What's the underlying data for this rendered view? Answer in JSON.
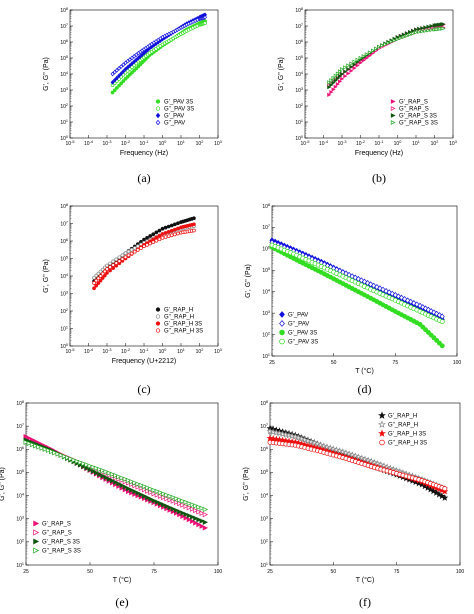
{
  "chart_data": [
    {
      "panel": "(a)",
      "type": "scatter",
      "xscale": "log",
      "yscale": "log",
      "xlim": [
        1e-05,
        1000
      ],
      "ylim": [
        1,
        100000000.0
      ],
      "xlabel": "Frequency (Hz)",
      "ylabel": "G', G\" (Pa)",
      "legend_position": "bottom-right",
      "series": [
        {
          "name": "G'_PAV 3S",
          "marker": "circle",
          "filled": true,
          "color": "#33dd22",
          "x": [
            0.002,
            0.01,
            0.05,
            0.2,
            1,
            5,
            20,
            100,
            200
          ],
          "y": [
            700,
            5000,
            30000,
            150000,
            600000,
            2000000,
            6000000,
            15000000,
            20000000
          ]
        },
        {
          "name": "G\"_PAV 3S",
          "marker": "circle",
          "filled": false,
          "color": "#33dd22",
          "x": [
            0.002,
            0.01,
            0.05,
            0.2,
            1,
            5,
            20,
            100,
            200
          ],
          "y": [
            2000,
            12000,
            60000,
            200000,
            700000,
            2000000,
            5000000,
            12000000,
            15000000
          ]
        },
        {
          "name": "G'_PAV",
          "marker": "diamond",
          "filled": true,
          "color": "#1111dd",
          "x": [
            0.002,
            0.01,
            0.05,
            0.2,
            1,
            5,
            20,
            100,
            200
          ],
          "y": [
            3000,
            20000,
            100000,
            400000,
            1500000,
            5000000,
            14000000,
            35000000,
            50000000
          ]
        },
        {
          "name": "G\"_PAV",
          "marker": "diamond",
          "filled": false,
          "color": "#1111dd",
          "x": [
            0.002,
            0.01,
            0.05,
            0.2,
            1,
            5,
            20,
            100,
            200
          ],
          "y": [
            10000,
            50000,
            200000,
            600000,
            2000000,
            5000000,
            12000000,
            28000000,
            35000000
          ]
        }
      ]
    },
    {
      "panel": "(b)",
      "type": "scatter",
      "xscale": "log",
      "yscale": "log",
      "xlim": [
        1e-05,
        1000
      ],
      "ylim": [
        1,
        100000000.0
      ],
      "xlabel": "Frequency (Hz)",
      "ylabel": "G', G\" (Pa)",
      "legend_position": "bottom-right",
      "series": [
        {
          "name": "G'_RAP_S",
          "marker": "triangle-right",
          "filled": true,
          "color": "#ee1177",
          "x": [
            0.0002,
            0.001,
            0.01,
            0.1,
            1,
            10,
            100,
            300
          ],
          "y": [
            500,
            5000,
            50000,
            400000,
            2000000,
            6000000,
            10000000,
            12000000
          ]
        },
        {
          "name": "G\"_RAP_S",
          "marker": "triangle-right",
          "filled": false,
          "color": "#ee1177",
          "x": [
            0.0002,
            0.001,
            0.01,
            0.1,
            1,
            10,
            100,
            300
          ],
          "y": [
            2000,
            10000,
            70000,
            400000,
            1500000,
            4000000,
            7000000,
            8000000
          ]
        },
        {
          "name": "G'_RAP_S 3S",
          "marker": "triangle-right",
          "filled": true,
          "color": "#115511",
          "x": [
            0.0002,
            0.001,
            0.01,
            0.1,
            1,
            10,
            100,
            300
          ],
          "y": [
            1500,
            10000,
            80000,
            500000,
            2000000,
            6000000,
            11000000,
            13000000
          ]
        },
        {
          "name": "G\"_RAP_S 3S",
          "marker": "triangle-right",
          "filled": false,
          "color": "#22aa22",
          "x": [
            0.0002,
            0.001,
            0.01,
            0.1,
            1,
            10,
            100,
            300
          ],
          "y": [
            3000,
            20000,
            100000,
            500000,
            1500000,
            4000000,
            6000000,
            7000000
          ]
        }
      ]
    },
    {
      "panel": "(c)",
      "type": "scatter",
      "xscale": "log",
      "yscale": "log",
      "xlim": [
        1e-05,
        1000
      ],
      "ylim": [
        1,
        100000000.0
      ],
      "xlabel": "Frequency (U+2212)",
      "ylabel": "G', G\" (Pa)",
      "legend_position": "bottom-right",
      "series": [
        {
          "name": "G'_RAP_H",
          "marker": "circle",
          "filled": true,
          "color": "#111111",
          "x": [
            0.0002,
            0.001,
            0.01,
            0.1,
            1,
            10,
            50
          ],
          "y": [
            5000,
            30000,
            200000,
            1200000,
            5000000,
            12000000,
            20000000
          ]
        },
        {
          "name": "G\"_RAP_H",
          "marker": "circle",
          "filled": false,
          "color": "#888888",
          "x": [
            0.0002,
            0.001,
            0.01,
            0.1,
            1,
            10,
            50
          ],
          "y": [
            8000,
            40000,
            200000,
            800000,
            2500000,
            5000000,
            7000000
          ]
        },
        {
          "name": "G'_RAP_H 3S",
          "marker": "circle",
          "filled": true,
          "color": "#ee1111",
          "x": [
            0.0002,
            0.001,
            0.01,
            0.1,
            1,
            10,
            50
          ],
          "y": [
            2000,
            15000,
            100000,
            600000,
            2500000,
            6000000,
            9000000
          ]
        },
        {
          "name": "G\"_RAP_H 3S",
          "marker": "circle",
          "filled": false,
          "color": "#ee1111",
          "x": [
            0.0002,
            0.001,
            0.01,
            0.1,
            1,
            10,
            50
          ],
          "y": [
            4000,
            25000,
            120000,
            500000,
            1500000,
            3000000,
            4000000
          ]
        }
      ]
    },
    {
      "panel": "(d)",
      "type": "scatter",
      "xscale": "linear",
      "yscale": "log",
      "xlim": [
        25,
        100
      ],
      "ylim": [
        10,
        100000000.0
      ],
      "xticks": [
        25,
        50,
        75,
        100
      ],
      "xlabel": "T (°C)",
      "ylabel": "G', G\" (Pa)",
      "legend_position": "bottom-left",
      "series": [
        {
          "name": "G'_PAV",
          "marker": "diamond",
          "filled": true,
          "color": "#1111dd",
          "x": [
            25,
            35,
            45,
            55,
            65,
            75,
            85,
            94
          ],
          "y": [
            2500000,
            800000,
            250000,
            70000,
            20000,
            6000,
            1800,
            500
          ]
        },
        {
          "name": "G\"_PAV",
          "marker": "diamond",
          "filled": false,
          "color": "#1111dd",
          "x": [
            25,
            35,
            45,
            55,
            65,
            75,
            85,
            94
          ],
          "y": [
            2000000,
            700000,
            220000,
            70000,
            22000,
            7000,
            2200,
            700
          ]
        },
        {
          "name": "G'_PAV 3S",
          "marker": "circle",
          "filled": true,
          "color": "#33dd22",
          "x": [
            25,
            35,
            45,
            55,
            65,
            75,
            85,
            94
          ],
          "y": [
            1200000,
            300000,
            80000,
            20000,
            5000,
            1200,
            300,
            30
          ]
        },
        {
          "name": "G\"_PAV  3S",
          "marker": "circle",
          "filled": false,
          "color": "#33dd22",
          "x": [
            25,
            35,
            45,
            55,
            65,
            75,
            85,
            94
          ],
          "y": [
            1500000,
            500000,
            150000,
            45000,
            13000,
            4000,
            1200,
            400
          ]
        }
      ]
    },
    {
      "panel": "(e)",
      "type": "scatter",
      "xscale": "linear",
      "yscale": "log",
      "xlim": [
        25,
        100
      ],
      "ylim": [
        10,
        100000000.0
      ],
      "xticks": [
        25,
        50,
        75,
        100
      ],
      "xlabel": "T (°C)",
      "ylabel": "G', G\" (Pa)",
      "legend_position": "bottom-left",
      "series": [
        {
          "name": "G'_RAP_S",
          "marker": "triangle-right",
          "filled": true,
          "color": "#ee1177",
          "x": [
            25,
            35,
            45,
            55,
            65,
            75,
            85,
            95
          ],
          "y": [
            3500000,
            1000000,
            250000,
            60000,
            15000,
            5000,
            1500,
            400
          ]
        },
        {
          "name": "G\"_RAP_S",
          "marker": "triangle-right",
          "filled": false,
          "color": "#ee1177",
          "x": [
            25,
            35,
            45,
            55,
            65,
            75,
            85,
            95
          ],
          "y": [
            2500000,
            900000,
            300000,
            100000,
            35000,
            12000,
            4500,
            1500
          ]
        },
        {
          "name": "G'_RAP_S 3S",
          "marker": "triangle-right",
          "filled": true,
          "color": "#115511",
          "x": [
            25,
            35,
            45,
            55,
            65,
            75,
            85,
            95
          ],
          "y": [
            2500000,
            900000,
            250000,
            70000,
            20000,
            6000,
            2000,
            700
          ]
        },
        {
          "name": "G\"_RAP_S 3S",
          "marker": "triangle-right",
          "filled": false,
          "color": "#22aa22",
          "x": [
            25,
            35,
            45,
            55,
            65,
            75,
            85,
            95
          ],
          "y": [
            2000000,
            800000,
            300000,
            120000,
            45000,
            17000,
            6500,
            2500
          ]
        }
      ]
    },
    {
      "panel": "(f)",
      "type": "scatter",
      "xscale": "linear",
      "yscale": "log",
      "xlim": [
        25,
        100
      ],
      "ylim": [
        10,
        100000000.0
      ],
      "xticks": [
        25,
        50,
        75,
        100
      ],
      "xlabel": "T (°C)",
      "ylabel": "G', G\" (Pa)",
      "legend_position": "top-right",
      "series": [
        {
          "name": "G'_RAP_H",
          "marker": "star",
          "filled": true,
          "color": "#111111",
          "x": [
            25,
            35,
            45,
            55,
            65,
            75,
            85,
            94
          ],
          "y": [
            8000000,
            4000000,
            1500000,
            600000,
            200000,
            80000,
            30000,
            8000
          ]
        },
        {
          "name": "G\"_RAP_H",
          "marker": "star",
          "filled": false,
          "color": "#888888",
          "x": [
            25,
            35,
            45,
            55,
            65,
            75,
            85,
            94
          ],
          "y": [
            6000000,
            3500000,
            1500000,
            700000,
            300000,
            120000,
            50000,
            20000
          ]
        },
        {
          "name": "G'_RAP_H 3S",
          "marker": "star",
          "filled": true,
          "color": "#ee1111",
          "x": [
            25,
            35,
            45,
            55,
            65,
            75,
            85,
            94
          ],
          "y": [
            3000000,
            2000000,
            1000000,
            450000,
            200000,
            90000,
            40000,
            15000
          ]
        },
        {
          "name": "G\"_RAP_H 3S",
          "marker": "circle",
          "filled": false,
          "color": "#ee1111",
          "x": [
            25,
            35,
            45,
            55,
            65,
            75,
            85,
            94
          ],
          "y": [
            2000000,
            1500000,
            800000,
            400000,
            180000,
            90000,
            45000,
            20000
          ]
        }
      ]
    }
  ]
}
